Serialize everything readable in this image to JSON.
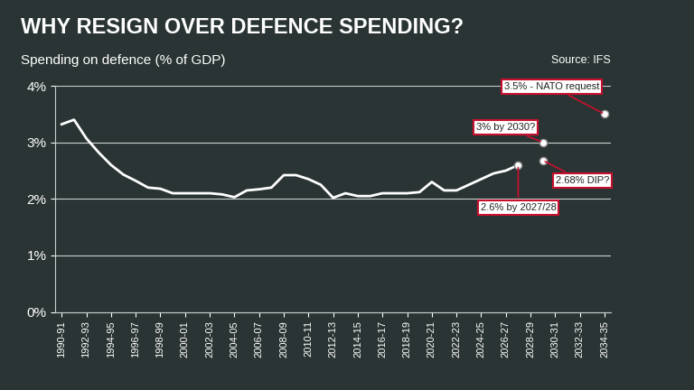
{
  "chart_data": {
    "type": "line",
    "title": "WHY RESIGN OVER DEFENCE SPENDING?",
    "y_label": "Spending on defence (% of GDP)",
    "source": "Source: IFS",
    "categories": [
      "1990-91",
      null,
      "1992-93",
      null,
      "1994-95",
      null,
      "1996-97",
      null,
      "1998-99",
      null,
      "2000-01",
      null,
      "2002-03",
      null,
      "2004-05",
      null,
      "2006-07",
      null,
      "2008-09",
      null,
      "2010-11",
      null,
      "2012-13",
      null,
      "2014-15",
      null,
      "2016-17",
      null,
      "2018-19",
      null,
      "2020-21",
      null,
      "2022-23",
      null,
      "2024-25",
      null,
      "2026-27",
      null,
      "2028-29",
      null,
      "2030-31",
      null,
      "2032-33",
      null,
      "2034-35"
    ],
    "values": [
      3.32,
      3.4,
      3.07,
      2.82,
      2.6,
      2.43,
      2.32,
      2.2,
      2.18,
      2.1,
      2.1,
      2.1,
      2.1,
      2.08,
      2.03,
      2.15,
      2.17,
      2.2,
      2.42,
      2.42,
      2.35,
      2.25,
      2.02,
      2.1,
      2.05,
      2.05,
      2.1,
      2.1,
      2.1,
      2.12,
      2.3,
      2.15,
      2.15,
      2.25,
      2.35,
      2.45,
      2.5,
      2.6,
      null,
      null,
      null,
      null,
      null,
      null,
      null
    ],
    "color": "#ffffff",
    "annotations": [
      {
        "text": "3.5% - NATO request",
        "x_index": 44,
        "value": 3.5
      },
      {
        "text": "3% by 2030?",
        "x_index": 39,
        "value": 3.0
      },
      {
        "text": "2.68% DIP?",
        "x_index": 39,
        "value": 2.68
      },
      {
        "text": "2.6% by 2027/28",
        "x_index": 37,
        "value": 2.6
      }
    ],
    "ylim": [
      0,
      4
    ],
    "yticks": [
      {
        "value": 0,
        "label": "0%"
      },
      {
        "value": 1,
        "label": "1%"
      },
      {
        "value": 2,
        "label": "2%"
      },
      {
        "value": 3,
        "label": "3%"
      },
      {
        "value": 4,
        "label": "4%"
      }
    ],
    "grid": true
  }
}
